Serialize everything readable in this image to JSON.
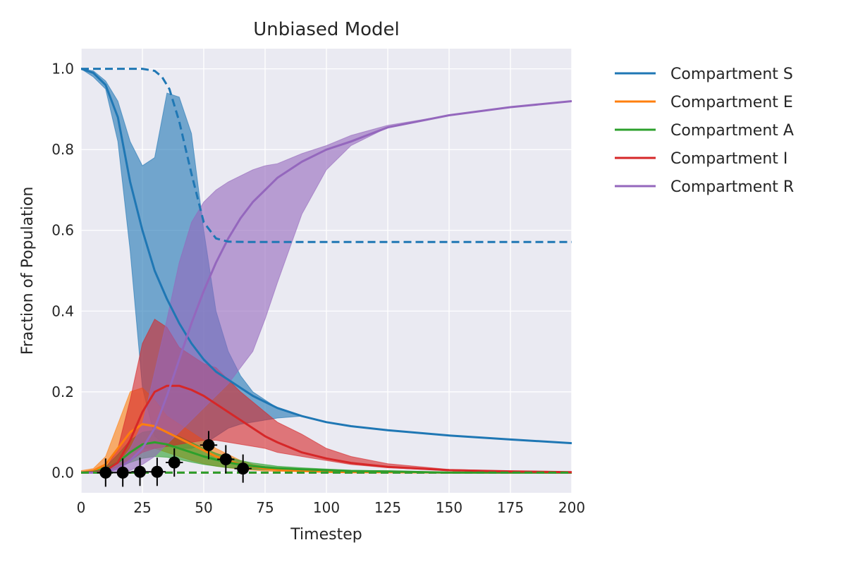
{
  "chart_data": {
    "type": "line",
    "title": "Unbiased Model",
    "xlabel": "Timestep",
    "ylabel": "Fraction of Population",
    "xlim": [
      0,
      200
    ],
    "ylim": [
      -0.05,
      1.05
    ],
    "xticks": [
      "0",
      "25",
      "50",
      "75",
      "100",
      "125",
      "150",
      "175",
      "200"
    ],
    "yticks": [
      "0.0",
      "0.2",
      "0.4",
      "0.6",
      "0.8",
      "1.0"
    ],
    "grid": true,
    "background": "#EAEAF2",
    "legend_position": "outside-right",
    "x": [
      0,
      5,
      10,
      15,
      20,
      25,
      30,
      35,
      40,
      45,
      50,
      55,
      60,
      65,
      70,
      75,
      80,
      90,
      100,
      110,
      125,
      150,
      175,
      200
    ],
    "series": [
      {
        "name": "Compartment S",
        "color": "#1f77b4",
        "values": [
          1.0,
          0.99,
          0.96,
          0.88,
          0.72,
          0.6,
          0.5,
          0.43,
          0.37,
          0.32,
          0.28,
          0.25,
          0.23,
          0.21,
          0.19,
          0.175,
          0.16,
          0.14,
          0.125,
          0.115,
          0.105,
          0.092,
          0.082,
          0.073
        ],
        "lower": [
          1.0,
          0.98,
          0.95,
          0.82,
          0.55,
          0.21,
          0.09,
          0.065,
          0.06,
          0.06,
          0.07,
          0.09,
          0.11,
          0.12,
          0.125,
          0.13,
          0.135,
          0.14,
          0.125,
          0.115,
          0.105,
          0.092,
          0.082,
          0.073
        ],
        "upper": [
          1.0,
          0.995,
          0.97,
          0.92,
          0.82,
          0.76,
          0.78,
          0.94,
          0.93,
          0.84,
          0.6,
          0.4,
          0.3,
          0.24,
          0.2,
          0.18,
          0.16,
          0.14,
          0.125,
          0.115,
          0.105,
          0.092,
          0.082,
          0.073
        ]
      },
      {
        "name": "Compartment E",
        "color": "#ff7f0e",
        "values": [
          0.0,
          0.005,
          0.02,
          0.06,
          0.1,
          0.12,
          0.115,
          0.1,
          0.085,
          0.07,
          0.055,
          0.04,
          0.03,
          0.02,
          0.015,
          0.01,
          0.007,
          0.004,
          0.002,
          0.001,
          0.001,
          0.0,
          0.0,
          0.0
        ],
        "lower": [
          0.0,
          0.003,
          0.01,
          0.03,
          0.05,
          0.06,
          0.06,
          0.05,
          0.04,
          0.03,
          0.022,
          0.016,
          0.012,
          0.008,
          0.006,
          0.004,
          0.003,
          0.002,
          0.001,
          0.0,
          0.0,
          0.0,
          0.0,
          0.0
        ],
        "upper": [
          0.005,
          0.01,
          0.04,
          0.12,
          0.2,
          0.21,
          0.18,
          0.14,
          0.12,
          0.1,
          0.08,
          0.06,
          0.045,
          0.03,
          0.02,
          0.015,
          0.01,
          0.006,
          0.003,
          0.002,
          0.001,
          0.0,
          0.0,
          0.0
        ]
      },
      {
        "name": "Compartment A",
        "color": "#2ca02c",
        "values": [
          0.0,
          0.002,
          0.008,
          0.025,
          0.05,
          0.07,
          0.075,
          0.07,
          0.06,
          0.05,
          0.04,
          0.032,
          0.025,
          0.02,
          0.016,
          0.013,
          0.011,
          0.008,
          0.006,
          0.004,
          0.003,
          0.0,
          0.0,
          0.0
        ],
        "lower": [
          0.0,
          0.001,
          0.004,
          0.012,
          0.025,
          0.035,
          0.04,
          0.038,
          0.032,
          0.026,
          0.02,
          0.016,
          0.012,
          0.01,
          0.008,
          0.007,
          0.006,
          0.004,
          0.003,
          0.002,
          0.001,
          0.0,
          0.0,
          0.0
        ],
        "upper": [
          0.002,
          0.005,
          0.015,
          0.045,
          0.08,
          0.1,
          0.105,
          0.1,
          0.09,
          0.075,
          0.06,
          0.048,
          0.038,
          0.03,
          0.024,
          0.02,
          0.016,
          0.012,
          0.009,
          0.006,
          0.004,
          0.001,
          0.0,
          0.0
        ]
      },
      {
        "name": "Compartment I",
        "color": "#d62728",
        "values": [
          0.0,
          0.001,
          0.005,
          0.025,
          0.08,
          0.15,
          0.2,
          0.215,
          0.215,
          0.205,
          0.19,
          0.17,
          0.15,
          0.13,
          0.11,
          0.09,
          0.075,
          0.05,
          0.035,
          0.024,
          0.014,
          0.006,
          0.003,
          0.001
        ],
        "lower": [
          0.0,
          0.0,
          0.002,
          0.01,
          0.03,
          0.05,
          0.06,
          0.065,
          0.07,
          0.075,
          0.08,
          0.08,
          0.075,
          0.07,
          0.065,
          0.06,
          0.05,
          0.04,
          0.03,
          0.02,
          0.012,
          0.005,
          0.002,
          0.001
        ],
        "upper": [
          0.0,
          0.002,
          0.01,
          0.06,
          0.18,
          0.32,
          0.38,
          0.36,
          0.31,
          0.29,
          0.27,
          0.26,
          0.23,
          0.2,
          0.175,
          0.15,
          0.125,
          0.095,
          0.06,
          0.04,
          0.022,
          0.008,
          0.004,
          0.002
        ]
      },
      {
        "name": "Compartment R",
        "color": "#9467bd",
        "values": [
          0.0,
          0.0,
          0.002,
          0.01,
          0.03,
          0.06,
          0.11,
          0.19,
          0.28,
          0.37,
          0.45,
          0.52,
          0.58,
          0.63,
          0.67,
          0.7,
          0.73,
          0.77,
          0.8,
          0.82,
          0.855,
          0.885,
          0.905,
          0.92
        ],
        "lower": [
          0.0,
          0.0,
          0.0,
          0.0,
          0.005,
          0.02,
          0.04,
          0.07,
          0.1,
          0.13,
          0.16,
          0.19,
          0.22,
          0.26,
          0.3,
          0.38,
          0.47,
          0.64,
          0.75,
          0.81,
          0.855,
          0.885,
          0.905,
          0.92
        ],
        "upper": [
          0.0,
          0.0,
          0.005,
          0.02,
          0.06,
          0.12,
          0.25,
          0.38,
          0.52,
          0.62,
          0.67,
          0.7,
          0.72,
          0.735,
          0.75,
          0.76,
          0.765,
          0.79,
          0.81,
          0.835,
          0.86,
          0.885,
          0.905,
          0.92
        ]
      }
    ],
    "dashed_series": [
      {
        "color": "#1f77b4",
        "x": [
          0,
          10,
          20,
          25,
          30,
          33,
          36,
          40,
          45,
          50,
          55,
          60,
          70,
          80,
          100,
          125,
          150,
          175,
          200
        ],
        "values": [
          1.0,
          1.0,
          1.0,
          1.0,
          0.995,
          0.98,
          0.95,
          0.87,
          0.74,
          0.62,
          0.58,
          0.572,
          0.571,
          0.571,
          0.571,
          0.571,
          0.571,
          0.571,
          0.571
        ]
      },
      {
        "color": "#d62728",
        "x": [
          0,
          50,
          100,
          150,
          200
        ],
        "values": [
          0.0,
          0.0,
          0.0,
          0.0,
          0.0
        ]
      },
      {
        "color": "#2ca02c",
        "x": [
          0,
          50,
          100,
          150,
          200
        ],
        "values": [
          0.0,
          0.0,
          0.0,
          0.0,
          0.0
        ]
      }
    ],
    "observations": {
      "color": "#000000",
      "x": [
        10,
        17,
        24,
        31,
        38,
        52,
        59,
        66
      ],
      "y": [
        0.0,
        0.0,
        0.002,
        0.002,
        0.025,
        0.068,
        0.033,
        0.01
      ],
      "xerr": [
        3.5,
        3.5,
        3.5,
        3.5,
        3.5,
        3.5,
        3.5,
        3.5
      ],
      "yerr": [
        0.035,
        0.035,
        0.035,
        0.035,
        0.035,
        0.035,
        0.035,
        0.035
      ]
    }
  }
}
